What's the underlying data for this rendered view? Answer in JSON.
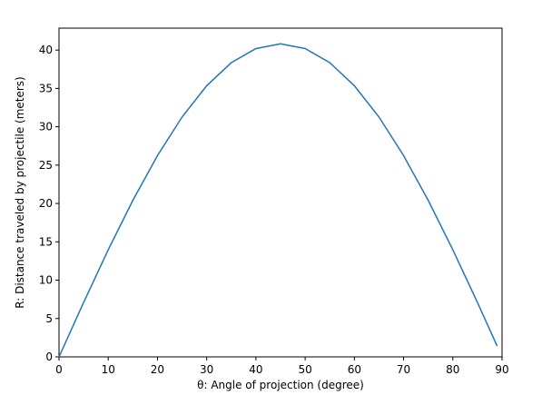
{
  "chart_data": {
    "type": "line",
    "xlabel": "θ: Angle of projection (degree)",
    "ylabel": "R: Distance traveled by projectile (meters)",
    "series": [
      {
        "color": "#1f77b4",
        "x": [
          0,
          5,
          10,
          15,
          20,
          25,
          30,
          35,
          40,
          45,
          50,
          55,
          60,
          65,
          70,
          75,
          80,
          85,
          89
        ],
        "values": [
          0,
          7.09,
          13.96,
          20.41,
          26.24,
          31.27,
          35.35,
          38.36,
          40.2,
          40.82,
          40.2,
          38.36,
          35.35,
          31.27,
          26.24,
          20.41,
          13.96,
          7.09,
          1.42
        ]
      }
    ],
    "xlim": [
      0,
      90
    ],
    "xticks": [
      0,
      10,
      20,
      30,
      40,
      50,
      60,
      70,
      80,
      90
    ],
    "ylim": [
      0,
      42.86
    ],
    "yticks": [
      0,
      5,
      10,
      15,
      20,
      25,
      30,
      35,
      40
    ],
    "grid": false
  }
}
